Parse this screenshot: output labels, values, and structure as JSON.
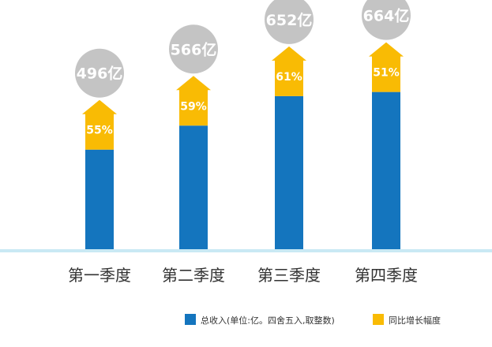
{
  "chart_data": {
    "type": "bar",
    "categories": [
      "第一季度",
      "第二季度",
      "第三季度",
      "第四季度"
    ],
    "series": [
      {
        "name": "总收入(单位:亿。四舍五入,取整数)",
        "values": [
          496,
          566,
          652,
          664
        ],
        "value_labels": [
          "496亿",
          "566亿",
          "652亿",
          "664亿"
        ],
        "color": "#1475be"
      },
      {
        "name": "同比增长幅度",
        "values": [
          55,
          59,
          61,
          51
        ],
        "value_labels": [
          "55%",
          "59%",
          "61%",
          "51%"
        ],
        "color": "#f9bb04"
      }
    ],
    "legend": {
      "placement": "bottom-right",
      "items": [
        {
          "label": "总收入(单位:亿。四舍五入,取整数)",
          "color": "#1475be"
        },
        {
          "label": "同比增长幅度",
          "color": "#f9bb04"
        }
      ]
    },
    "colors": {
      "bubble": "#c4c4c4",
      "bubble_text": "#ffffff",
      "percent_text": "#ffffff",
      "baseline": "#c9e9f4",
      "category_text": "#333333",
      "legend_text": "#333333"
    },
    "grid": false
  }
}
